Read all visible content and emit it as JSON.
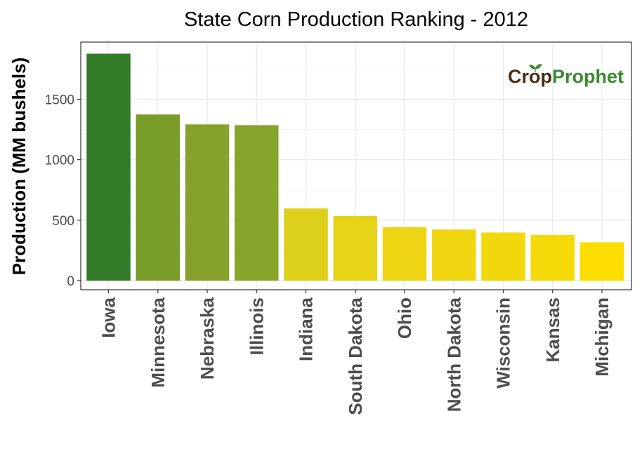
{
  "chart_data": {
    "type": "bar",
    "title": "State Corn Production Ranking - 2012",
    "xlabel": "",
    "ylabel": "Production (MM bushels)",
    "ylim": [
      0,
      1950
    ],
    "yticks": [
      0,
      500,
      1000,
      1500
    ],
    "grid": true,
    "categories": [
      "Iowa",
      "Minnesota",
      "Nebraska",
      "Illinois",
      "Indiana",
      "South Dakota",
      "Ohio",
      "North Dakota",
      "Wisconsin",
      "Kansas",
      "Michigan"
    ],
    "values": [
      1877,
      1374,
      1292,
      1286,
      597,
      534,
      443,
      423,
      398,
      378,
      317
    ],
    "colors": [
      "#347b2a",
      "#7a9d2a",
      "#86a22a",
      "#87a42b",
      "#ddd01b",
      "#e7d216",
      "#eed513",
      "#efd611",
      "#f1d80d",
      "#f4da08",
      "#fede00"
    ]
  },
  "logo": {
    "part1": "Cr",
    "part2": "p",
    "part3": "Prophet",
    "color_dark": "#4a2e12",
    "color_green": "#3c8a2e"
  }
}
